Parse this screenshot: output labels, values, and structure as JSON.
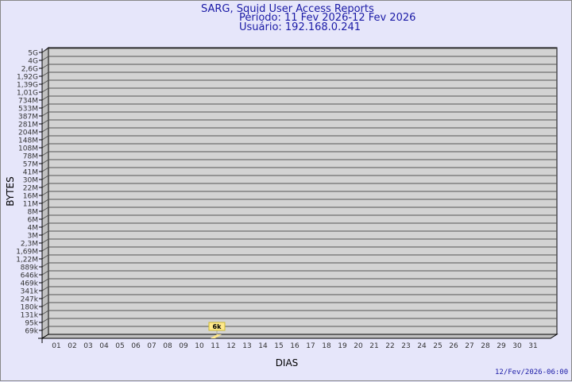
{
  "header": {
    "title": "SARG, Squid User Access Reports",
    "period": "Período: 11 Fev 2026-12 Fev 2026",
    "user": "Usuário: 192.168.0.241"
  },
  "footer": {
    "timestamp": "12/Fev/2026-06:00"
  },
  "chart_data": {
    "type": "bar",
    "xlabel": "DIAS",
    "ylabel": "BYTES",
    "y_scale": "log",
    "y_ticks": [
      "5G",
      "4G",
      "2,6G",
      "1,92G",
      "1,39G",
      "1,01G",
      "734M",
      "533M",
      "387M",
      "281M",
      "204M",
      "148M",
      "108M",
      "78M",
      "57M",
      "41M",
      "30M",
      "22M",
      "16M",
      "11M",
      "8M",
      "6M",
      "4M",
      "3M",
      "2,3M",
      "1,69M",
      "1,22M",
      "889k",
      "646k",
      "469k",
      "341k",
      "247k",
      "180k",
      "131k",
      "95k",
      "69k"
    ],
    "categories": [
      "01",
      "02",
      "03",
      "04",
      "05",
      "06",
      "07",
      "08",
      "09",
      "10",
      "11",
      "12",
      "13",
      "14",
      "15",
      "16",
      "17",
      "18",
      "19",
      "20",
      "21",
      "22",
      "23",
      "24",
      "25",
      "26",
      "27",
      "28",
      "29",
      "30",
      "31"
    ],
    "bars": [
      {
        "day": "11",
        "label": "6k",
        "value": 6000
      }
    ],
    "grid": true,
    "colors": {
      "plot": "#d3d3d3",
      "side": "#c0c0c0",
      "bar": "#ffe98c",
      "text": "#1a1aa6"
    }
  }
}
